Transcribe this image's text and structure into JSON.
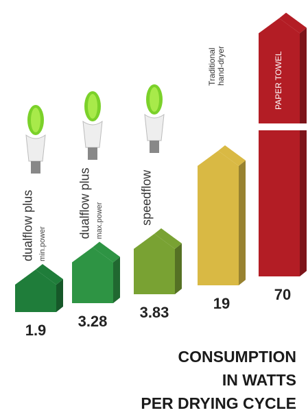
{
  "chart_data": {
    "type": "house-bar",
    "title_lines": [
      "CONSUMPTION",
      "IN WATTS",
      "PER DRYING CYCLE"
    ],
    "categories": [
      "dualflow plus",
      "dualflow plus",
      "speedflow",
      "Traditional hand-dryer",
      "PAPER TOWEL"
    ],
    "sublabels": [
      "min.power",
      "max.power",
      null,
      null,
      null
    ],
    "values": [
      1.9,
      3.28,
      3.83,
      19,
      70
    ],
    "colors": [
      "#1f7d3a",
      "#2e9444",
      "#79a233",
      "#d9b944",
      "#b31d25"
    ]
  }
}
